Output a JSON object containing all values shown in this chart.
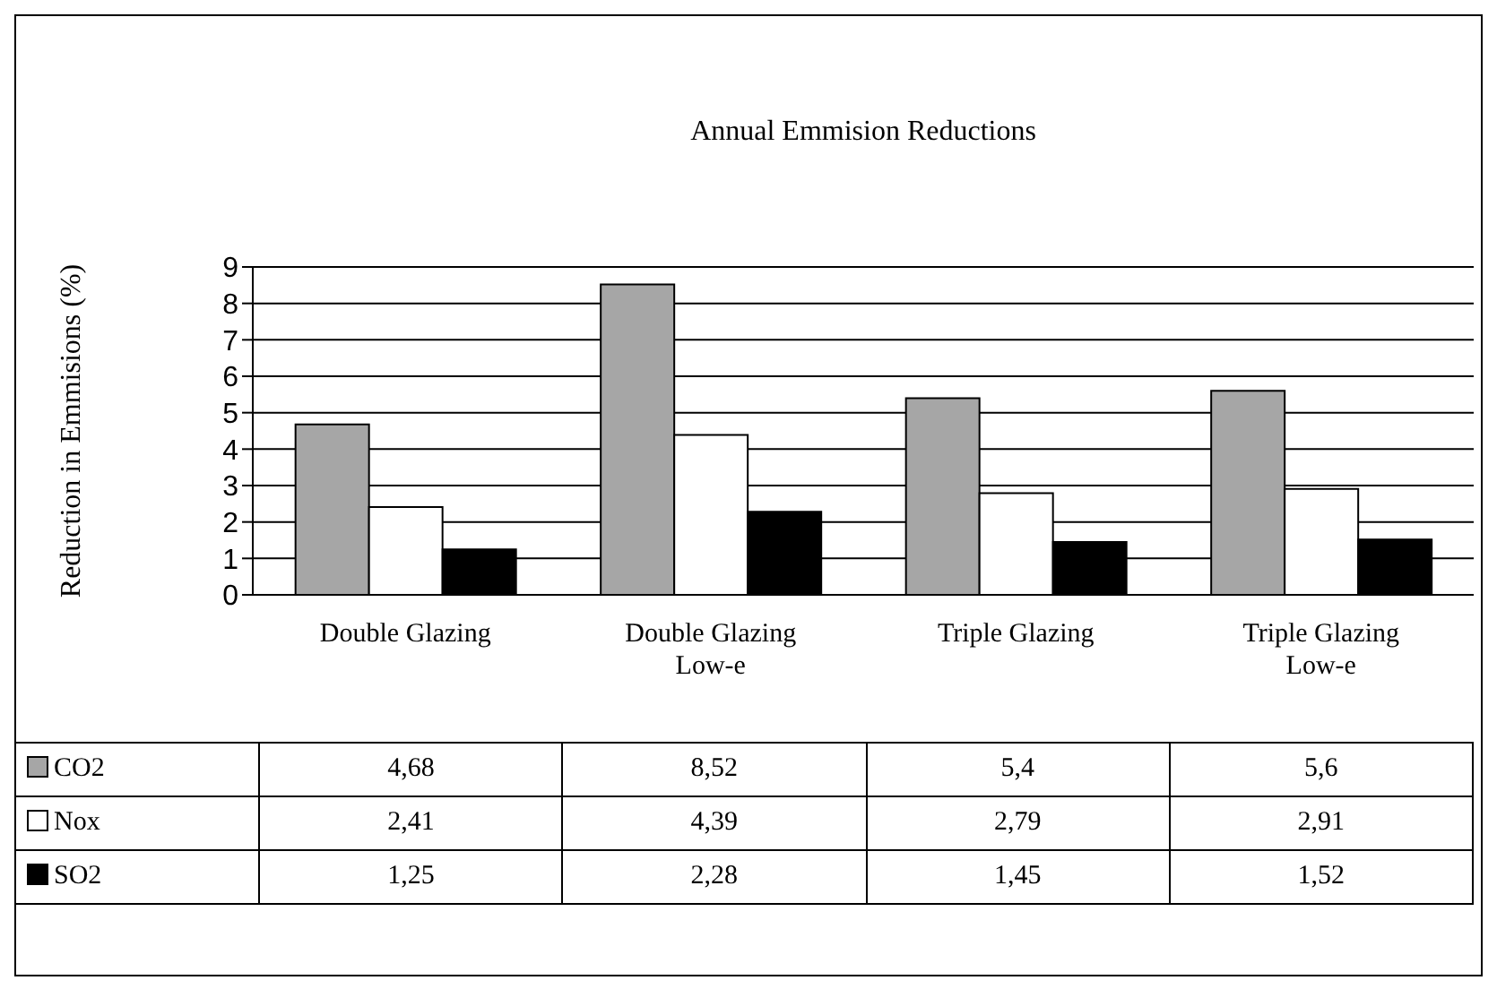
{
  "chart_data": {
    "type": "bar",
    "title": "Annual Emmision Reductions",
    "ylabel": "Reduction in Emmisions (%)",
    "categories": [
      "Double Glazing",
      "Double Glazing Low-e",
      "Triple Glazing",
      "Triple Glazing Low-e"
    ],
    "series": [
      {
        "name": "CO2",
        "color": "#a6a6a6",
        "values": [
          4.68,
          8.52,
          5.4,
          5.6
        ],
        "value_labels": [
          "4,68",
          "8,52",
          "5,4",
          "5,6"
        ]
      },
      {
        "name": "Nox",
        "color": "#ffffff",
        "values": [
          2.41,
          4.39,
          2.79,
          2.91
        ],
        "value_labels": [
          "2,41",
          "4,39",
          "2,79",
          "2,91"
        ]
      },
      {
        "name": "SO2",
        "color": "#000000",
        "values": [
          1.25,
          2.28,
          1.45,
          1.52
        ],
        "value_labels": [
          "1,25",
          "2,28",
          "1,45",
          "1,52"
        ]
      }
    ],
    "ylim": [
      0,
      9
    ],
    "yticks": [
      0,
      1,
      2,
      3,
      4,
      5,
      6,
      7,
      8,
      9
    ],
    "grid": "y",
    "legend": "bottom"
  }
}
